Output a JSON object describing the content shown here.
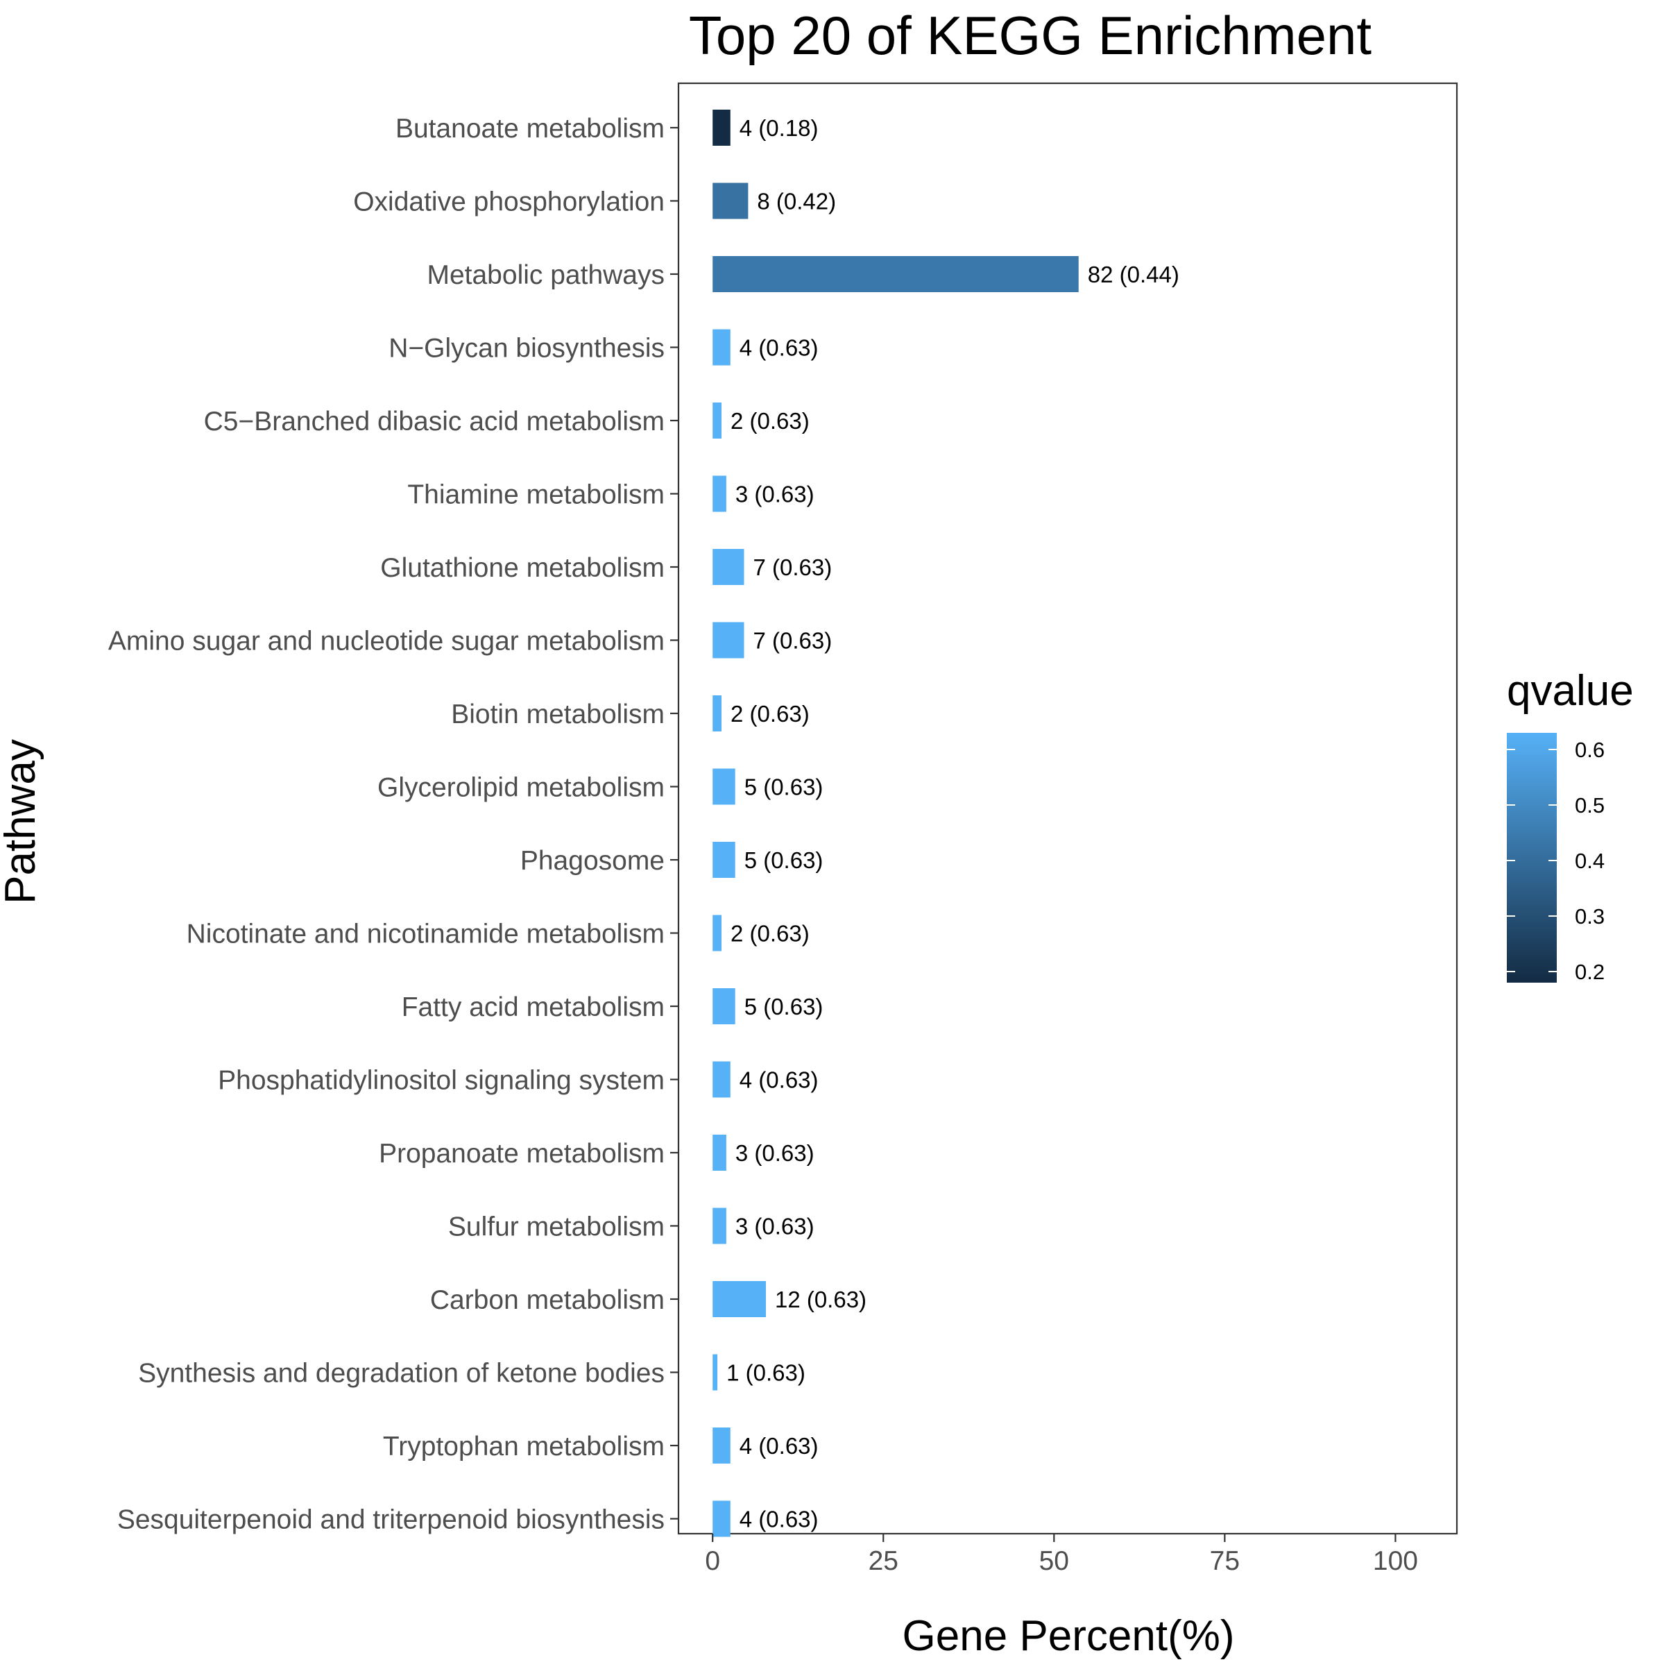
{
  "chart_data": {
    "type": "bar",
    "orientation": "horizontal",
    "title": "Top 20 of KEGG Enrichment",
    "xlabel": "Gene Percent(%)",
    "ylabel": "Pathway",
    "xlim": [
      -5,
      109
    ],
    "xticks": [
      0,
      25,
      50,
      75,
      100
    ],
    "grid": false,
    "legend_position": "right",
    "categories": [
      "Butanoate metabolism",
      "Oxidative phosphorylation",
      "Metabolic pathways",
      "N−Glycan biosynthesis",
      "C5−Branched dibasic acid metabolism",
      "Thiamine metabolism",
      "Glutathione metabolism",
      "Amino sugar and nucleotide sugar metabolism",
      "Biotin metabolism",
      "Glycerolipid metabolism",
      "Phagosome",
      "Nicotinate and nicotinamide metabolism",
      "Fatty acid metabolism",
      "Phosphatidylinositol signaling system",
      "Propanoate metabolism",
      "Sulfur metabolism",
      "Carbon metabolism",
      "Synthesis and degradation of ketone bodies",
      "Tryptophan metabolism",
      "Sesquiterpenoid and triterpenoid biosynthesis"
    ],
    "values": [
      2.6,
      5.2,
      53.6,
      2.6,
      1.3,
      2.0,
      4.6,
      4.6,
      1.3,
      3.3,
      3.3,
      1.3,
      3.3,
      2.6,
      2.0,
      2.0,
      7.8,
      0.7,
      2.6,
      2.6
    ],
    "counts": [
      4,
      8,
      82,
      4,
      2,
      3,
      7,
      7,
      2,
      5,
      5,
      2,
      5,
      4,
      3,
      3,
      12,
      1,
      4,
      4
    ],
    "qvalues": [
      0.18,
      0.42,
      0.44,
      0.63,
      0.63,
      0.63,
      0.63,
      0.63,
      0.63,
      0.63,
      0.63,
      0.63,
      0.63,
      0.63,
      0.63,
      0.63,
      0.63,
      0.63,
      0.63,
      0.63
    ],
    "data_labels": [
      "4 (0.18)",
      "8 (0.42)",
      "82 (0.44)",
      "4 (0.63)",
      "2 (0.63)",
      "3 (0.63)",
      "7 (0.63)",
      "7 (0.63)",
      "2 (0.63)",
      "5 (0.63)",
      "5 (0.63)",
      "2 (0.63)",
      "5 (0.63)",
      "4 (0.63)",
      "3 (0.63)",
      "3 (0.63)",
      "12 (0.63)",
      "1 (0.63)",
      "4 (0.63)",
      "4 (0.63)"
    ],
    "legend": {
      "title": "qvalue",
      "range": [
        0.18,
        0.63
      ],
      "ticks": [
        0.2,
        0.3,
        0.4,
        0.5,
        0.6
      ],
      "tick_labels": [
        "0.2",
        "0.3",
        "0.4",
        "0.5",
        "0.6"
      ],
      "low_color": "#132b43",
      "high_color": "#56b1f7"
    }
  }
}
